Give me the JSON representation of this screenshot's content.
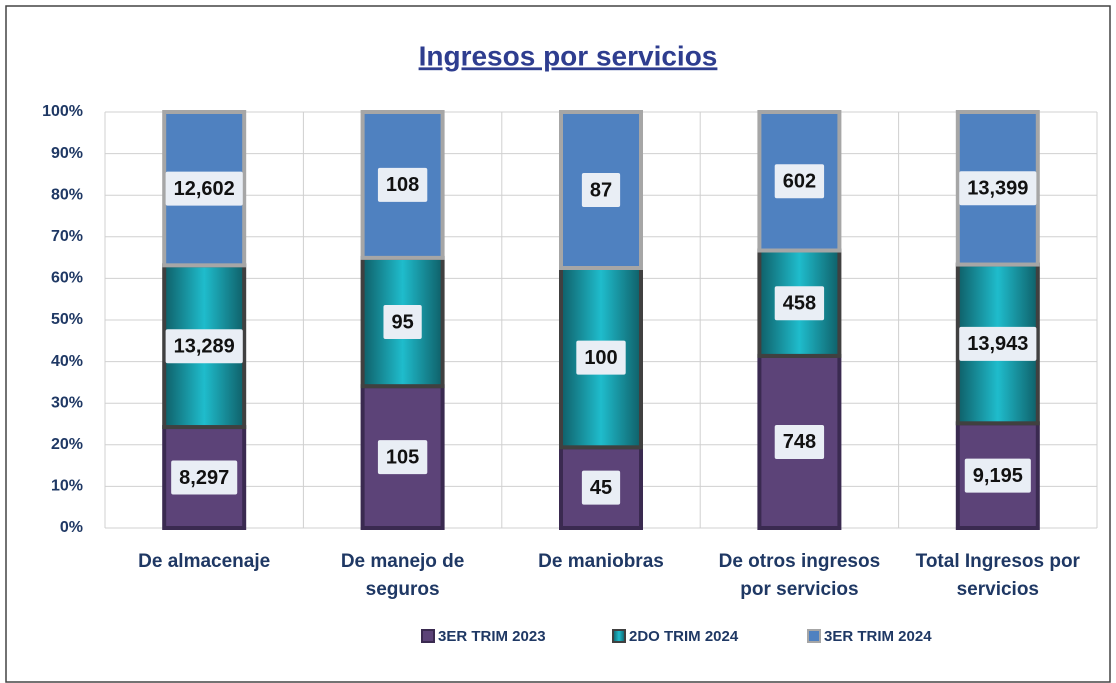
{
  "chart_data": {
    "type": "bar",
    "stacked": "percent",
    "title": "Ingresos por servicios",
    "categories": [
      "De almacenaje",
      "De manejo de seguros",
      "De maniobras",
      "De otros ingresos por servicios",
      "Total Ingresos por servicios"
    ],
    "series": [
      {
        "name": "3ER TRIM 2023",
        "color": "#5c4378",
        "values": [
          8297,
          105,
          45,
          748,
          9195
        ],
        "value_labels": [
          "8,297",
          "105",
          "45",
          "748",
          "9,195"
        ]
      },
      {
        "name": "2DO TRIM 2024",
        "color": "#1fbccc",
        "values": [
          13289,
          95,
          100,
          458,
          13943
        ],
        "value_labels": [
          "13,289",
          "95",
          "100",
          "458",
          "13,943"
        ]
      },
      {
        "name": "3ER TRIM 2024",
        "color": "#4f81c0",
        "values": [
          12602,
          108,
          87,
          602,
          13399
        ],
        "value_labels": [
          "12,602",
          "108",
          "87",
          "602",
          "13,399"
        ]
      }
    ],
    "ylim": [
      0,
      100
    ],
    "yticks": [
      {
        "value": 0,
        "label": "0%"
      },
      {
        "value": 10,
        "label": "10%"
      },
      {
        "value": 20,
        "label": "20%"
      },
      {
        "value": 30,
        "label": "30%"
      },
      {
        "value": 40,
        "label": "40%"
      },
      {
        "value": 50,
        "label": "50%"
      },
      {
        "value": 60,
        "label": "60%"
      },
      {
        "value": 70,
        "label": "70%"
      },
      {
        "value": 80,
        "label": "80%"
      },
      {
        "value": 90,
        "label": "90%"
      },
      {
        "value": 100,
        "label": "100%"
      }
    ],
    "grid": true,
    "legend": "bottom"
  }
}
